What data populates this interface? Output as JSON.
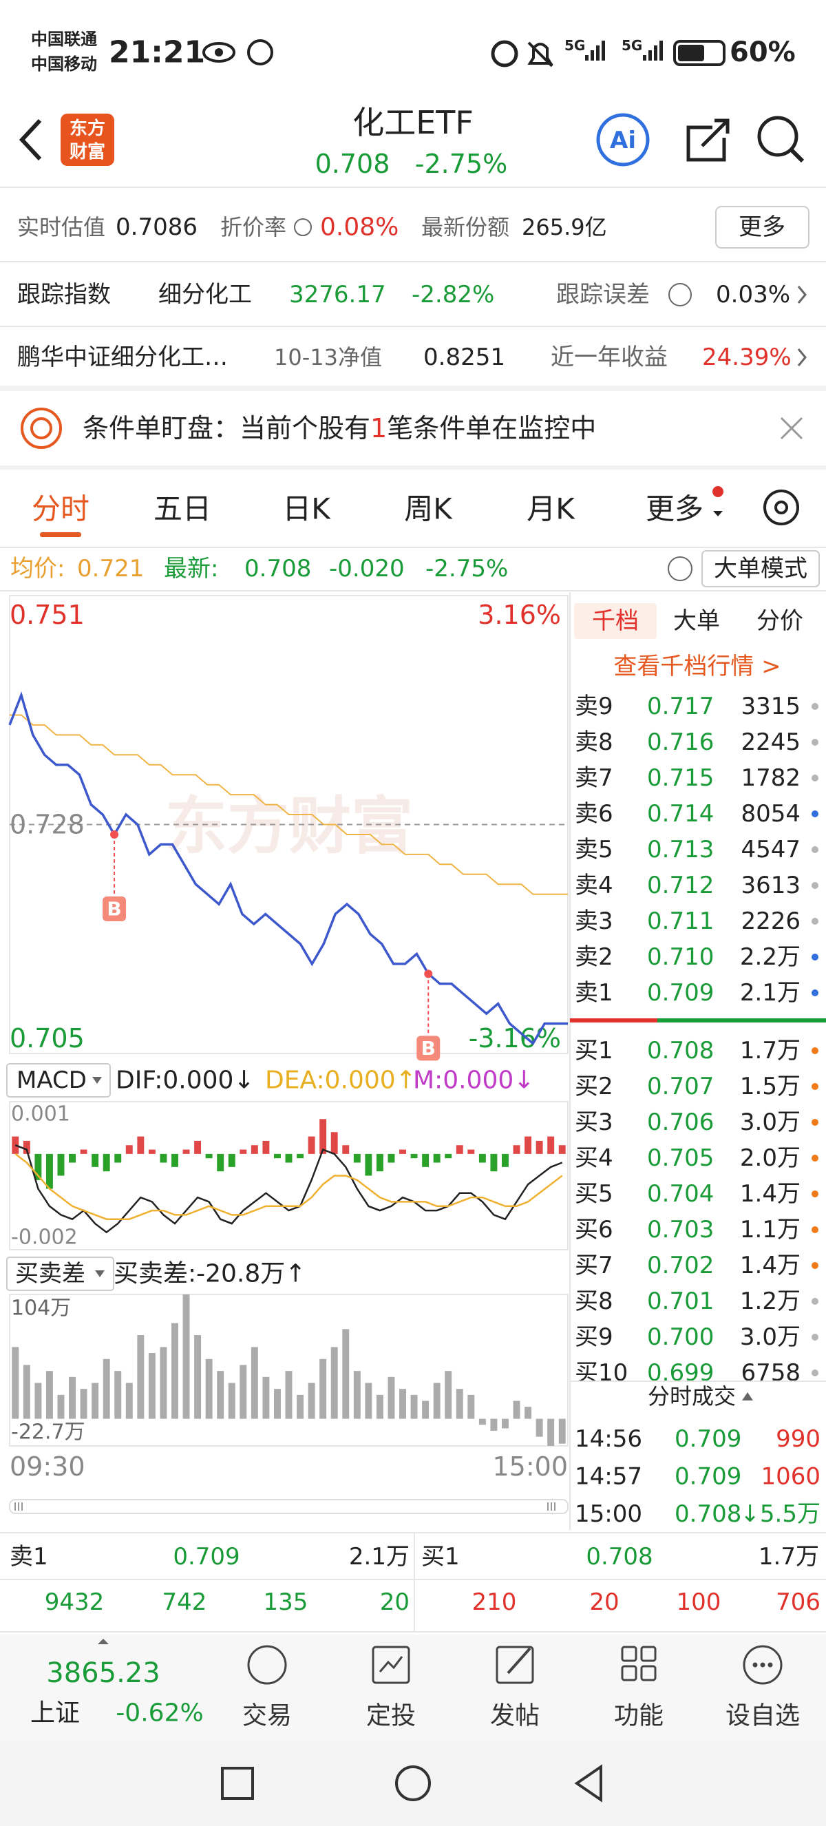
{
  "status_bar": {
    "carrier_1": "中国联通",
    "carrier_2": "中国移动",
    "time": "21:21",
    "network_1": "5G",
    "network_2": "5G",
    "battery": "60%"
  },
  "header": {
    "logo_line_1": "东方",
    "logo_line_2": "财富",
    "title": "化工ETF",
    "price": "0.708",
    "change": "-2.75%",
    "ai": "Ai"
  },
  "info": {
    "rows": [
      [
        "实时估值",
        "0.7086",
        "折价率",
        "0.08%",
        "最新份额",
        "265.9亿",
        "更多"
      ],
      [
        "跟踪指数",
        "细分化工",
        "3276.17",
        "-2.82%",
        "跟踪误差",
        "0.03%"
      ],
      [
        "鹏华中证细分化工…",
        "10-13净值",
        "0.8251",
        "近一年收益",
        "24.39%"
      ]
    ]
  },
  "banner": {
    "text_before": "条件单盯盘：当前个股有",
    "count": "1",
    "text_after": "笔条件单在监控中"
  },
  "tabs": [
    "分时",
    "五日",
    "日K",
    "周K",
    "月K",
    "更多"
  ],
  "quote": {
    "avg_label": "均价:",
    "avg": "0.721",
    "last_label": "最新:",
    "last": "0.708",
    "change": "-0.020",
    "change_pct": "-2.75%",
    "mode_button": "大单模式"
  },
  "chart_data": [
    {
      "type": "line",
      "watermark": "东方财富",
      "categories": [
        "09:30",
        null,
        null,
        null,
        null,
        null,
        null,
        null,
        null,
        null,
        null,
        null,
        null,
        null,
        null,
        null,
        null,
        null,
        null,
        null,
        null,
        null,
        null,
        null,
        null,
        null,
        null,
        null,
        null,
        null,
        null,
        null,
        null,
        null,
        null,
        null,
        null,
        null,
        null,
        null,
        null,
        null,
        null,
        null,
        null,
        null,
        null,
        null,
        "15:00"
      ],
      "ylim": [
        0.705,
        0.751
      ],
      "yticks": [
        0.751,
        0.728,
        0.705
      ],
      "y2lim": [
        -3.16,
        3.16
      ],
      "y2ticks": [
        {
          "value": 3.16,
          "label": "3.16%"
        },
        {
          "value": -3.16,
          "label": "-3.16%"
        }
      ],
      "series": [
        {
          "color": "#3d57cc",
          "values": [
            0.738,
            0.741,
            0.737,
            0.735,
            0.734,
            0.734,
            0.733,
            0.73,
            0.729,
            0.727,
            0.729,
            0.728,
            0.725,
            0.726,
            0.726,
            0.724,
            0.722,
            0.721,
            0.72,
            0.722,
            0.719,
            0.718,
            0.719,
            0.718,
            0.717,
            0.716,
            0.714,
            0.716,
            0.719,
            0.72,
            0.719,
            0.717,
            0.716,
            0.714,
            0.714,
            0.715,
            0.713,
            0.712,
            0.712,
            0.711,
            0.71,
            0.709,
            0.71,
            0.708,
            0.707,
            0.706,
            0.708,
            0.708,
            0.708
          ]
        },
        {
          "color": "#f0b445",
          "values": [
            0.739,
            0.739,
            0.738,
            0.738,
            0.737,
            0.737,
            0.737,
            0.736,
            0.736,
            0.735,
            0.735,
            0.735,
            0.734,
            0.734,
            0.733,
            0.733,
            0.733,
            0.732,
            0.732,
            0.731,
            0.731,
            0.731,
            0.73,
            0.73,
            0.729,
            0.729,
            0.729,
            0.728,
            0.728,
            0.727,
            0.727,
            0.727,
            0.726,
            0.726,
            0.725,
            0.725,
            0.725,
            0.724,
            0.724,
            0.723,
            0.723,
            0.723,
            0.722,
            0.722,
            0.722,
            0.721,
            0.721,
            0.721,
            0.721
          ]
        }
      ],
      "markers": [
        "B",
        "B"
      ]
    },
    {
      "type": "macd",
      "title": "MACD",
      "dif_label": "DIF:0.000↓",
      "dea_label": "DEA:0.000↑",
      "m_label": "M:0.000↓",
      "ylim": [
        -0.0022,
        0.0012
      ],
      "yticks": [
        0.001,
        -0.002
      ],
      "series": [
        {
          "color": "#222222",
          "values": [
            0.0002,
            0.0001,
            -0.0008,
            -0.0012,
            -0.0014,
            -0.0015,
            -0.0013,
            -0.0016,
            -0.0018,
            -0.0016,
            -0.0013,
            -0.001,
            -0.0011,
            -0.0014,
            -0.0016,
            -0.0013,
            -0.001,
            -0.0011,
            -0.0015,
            -0.0016,
            -0.0013,
            -0.0011,
            -0.0009,
            -0.0011,
            -0.0013,
            -0.0012,
            -0.0006,
            0.0001,
            0,
            -0.0003,
            -0.0008,
            -0.0012,
            -0.0013,
            -0.0012,
            -0.001,
            -0.0011,
            -0.0013,
            -0.0013,
            -0.0012,
            -0.0009,
            -0.0009,
            -0.0011,
            -0.0014,
            -0.0015,
            -0.0011,
            -0.0007,
            -0.0005,
            -0.0003,
            -0.0002
          ]
        },
        {
          "color": "#f0b030",
          "values": [
            0,
            -0.0002,
            -0.0005,
            -0.0008,
            -0.001,
            -0.0012,
            -0.0013,
            -0.0014,
            -0.0015,
            -0.0015,
            -0.0015,
            -0.0014,
            -0.0013,
            -0.0013,
            -0.0014,
            -0.0014,
            -0.0013,
            -0.0012,
            -0.0013,
            -0.0014,
            -0.0014,
            -0.0013,
            -0.0012,
            -0.0012,
            -0.0012,
            -0.0012,
            -0.001,
            -0.0007,
            -0.0005,
            -0.0005,
            -0.0006,
            -0.0008,
            -0.001,
            -0.0011,
            -0.0011,
            -0.0011,
            -0.0011,
            -0.0012,
            -0.0012,
            -0.0011,
            -0.001,
            -0.001,
            -0.0011,
            -0.0012,
            -0.0012,
            -0.0011,
            -0.0009,
            -0.0007,
            -0.0005
          ]
        }
      ],
      "bars": {
        "up_color": "#e04848",
        "down_color": "#2aa22a",
        "values": [
          0.0004,
          0.0003,
          -0.0006,
          -0.0008,
          -0.0005,
          -0.0002,
          0.0001,
          -0.0003,
          -0.0004,
          -0.0002,
          0.0002,
          0.0004,
          0.0001,
          -0.0002,
          -0.0003,
          0.0001,
          0.0003,
          -0.0001,
          -0.0004,
          -0.0003,
          0.0001,
          0.0002,
          0.0003,
          -0.0001,
          -0.0002,
          -0.0001,
          0.0004,
          0.0008,
          0.0005,
          0.0002,
          -0.0002,
          -0.0005,
          -0.0004,
          -0.0002,
          0.0001,
          -0.0001,
          -0.0003,
          -0.0002,
          -0.0001,
          0.0002,
          0.0001,
          -0.0002,
          -0.0004,
          -0.0003,
          0.0002,
          0.0004,
          0.0003,
          0.0004,
          0.0002
        ]
      }
    },
    {
      "type": "bar",
      "title": "买卖差",
      "label": "买卖差:-20.8万↑",
      "color": "#ababab",
      "ylim": [
        -22.7,
        104
      ],
      "yticks": [
        {
          "value": 104,
          "label": "104万"
        },
        {
          "value": -22.7,
          "label": "-22.7万"
        }
      ],
      "values": [
        60,
        45,
        30,
        40,
        20,
        35,
        25,
        30,
        50,
        40,
        30,
        70,
        55,
        60,
        80,
        104,
        70,
        50,
        40,
        30,
        45,
        60,
        35,
        25,
        40,
        20,
        30,
        50,
        60,
        75,
        40,
        30,
        20,
        35,
        25,
        20,
        15,
        30,
        40,
        25,
        20,
        -5,
        -10,
        -8,
        15,
        10,
        -15,
        -22.7,
        -20.8
      ]
    }
  ],
  "order_book": {
    "tabs": [
      "千档",
      "大单",
      "分价"
    ],
    "link": "查看千档行情 >",
    "sell": [
      {
        "level": "卖9",
        "price": "0.717",
        "volume": "3315",
        "dot": "#b5b5b5"
      },
      {
        "level": "卖8",
        "price": "0.716",
        "volume": "2245",
        "dot": "#b5b5b5"
      },
      {
        "level": "卖7",
        "price": "0.715",
        "volume": "1782",
        "dot": "#b5b5b5"
      },
      {
        "level": "卖6",
        "price": "0.714",
        "volume": "8054",
        "dot": "#2f6fde"
      },
      {
        "level": "卖5",
        "price": "0.713",
        "volume": "4547",
        "dot": "#b5b5b5"
      },
      {
        "level": "卖4",
        "price": "0.712",
        "volume": "3613",
        "dot": "#b5b5b5"
      },
      {
        "level": "卖3",
        "price": "0.711",
        "volume": "2226",
        "dot": "#b5b5b5"
      },
      {
        "level": "卖2",
        "price": "0.710",
        "volume": "2.2万",
        "dot": "#2f6fde"
      },
      {
        "level": "卖1",
        "price": "0.709",
        "volume": "2.1万",
        "dot": "#2f6fde"
      }
    ],
    "buy": [
      {
        "level": "买1",
        "price": "0.708",
        "volume": "1.7万",
        "dot": "#f07a1a"
      },
      {
        "level": "买2",
        "price": "0.707",
        "volume": "1.5万",
        "dot": "#f07a1a"
      },
      {
        "level": "买3",
        "price": "0.706",
        "volume": "3.0万",
        "dot": "#f07a1a"
      },
      {
        "level": "买4",
        "price": "0.705",
        "volume": "2.0万",
        "dot": "#f07a1a"
      },
      {
        "level": "买5",
        "price": "0.704",
        "volume": "1.4万",
        "dot": "#f07a1a"
      },
      {
        "level": "买6",
        "price": "0.703",
        "volume": "1.1万",
        "dot": "#f07a1a"
      },
      {
        "level": "买7",
        "price": "0.702",
        "volume": "1.4万",
        "dot": "#f07a1a"
      },
      {
        "level": "买8",
        "price": "0.701",
        "volume": "1.2万",
        "dot": "#b5b5b5"
      },
      {
        "level": "买9",
        "price": "0.700",
        "volume": "3.0万",
        "dot": "#b5b5b5"
      },
      {
        "level": "买10",
        "price": "0.699",
        "volume": "6758",
        "dot": "#b5b5b5"
      }
    ],
    "trades_title": "分时成交",
    "trades": [
      {
        "time": "14:56",
        "price": "0.709",
        "volume": "990",
        "color": "#e0312b"
      },
      {
        "time": "14:57",
        "price": "0.709",
        "volume": "1060",
        "color": "#e0312b"
      },
      {
        "time": "15:00",
        "price": "0.708",
        "volume": "↓5.5万",
        "color": "#199b38"
      }
    ]
  },
  "bottom_quote": {
    "sell": [
      "卖1",
      "0.709",
      "2.1万"
    ],
    "buy": [
      "买1",
      "0.708",
      "1.7万"
    ],
    "sell_orders": [
      "9432",
      "742",
      "135",
      "20"
    ],
    "buy_orders": [
      "210",
      "20",
      "100",
      "706"
    ]
  },
  "bottom_nav": {
    "index_value": "3865.23",
    "index_name": "上证",
    "index_change": "-0.62%",
    "items": [
      "交易",
      "定投",
      "发帖",
      "功能",
      "设自选"
    ]
  }
}
